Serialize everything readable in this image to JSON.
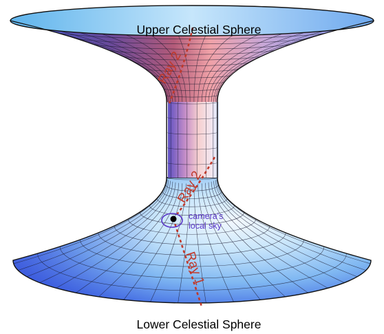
{
  "labels": {
    "upper": "Upper Celestial Sphere",
    "lower": "Lower Celestial Sphere",
    "ray_upper": "Ray 2",
    "ray_middle": "Ray 2",
    "ray_lower": "Ray 1",
    "camera_line1": "camera's",
    "camera_line2": "local sky"
  },
  "colors": {
    "ray": "#c0392b",
    "camera_sky": "#5a36c8",
    "camera_dot": "#000000",
    "grid": "#1a1a2e"
  }
}
